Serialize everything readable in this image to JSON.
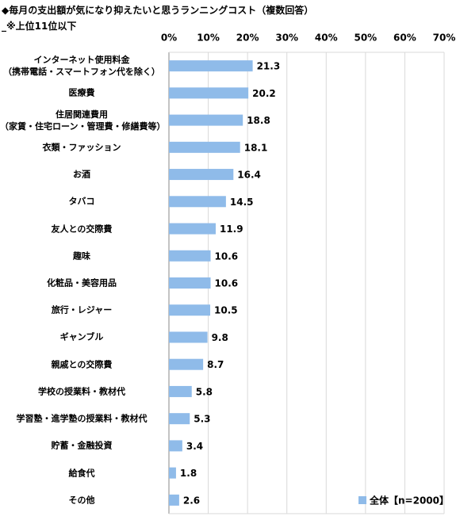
{
  "chart_data": {
    "type": "bar",
    "orientation": "horizontal",
    "title": "◆毎月の支出額が気になり抑えたいと思うランニングコスト（複数回答）",
    "subtitle": "_※上位11位以下",
    "categories": [
      "インターネット使用料金\n（携帯電話・スマートフォン代を除く）",
      "医療費",
      "住居関連費用\n（家賃・住宅ローン・管理費・修繕費等）",
      "衣類・ファッション",
      "お酒",
      "タバコ",
      "友人との交際費",
      "趣味",
      "化粧品・美容用品",
      "旅行・レジャー",
      "ギャンブル",
      "親戚との交際費",
      "学校の授業料・教材代",
      "学習塾・進学塾の授業料・教材代",
      "貯蓄・金融投資",
      "給食代",
      "その他"
    ],
    "series": [
      {
        "name": "全体【n=2000】",
        "color": "#8fbbe9",
        "values": [
          21.3,
          20.2,
          18.8,
          18.1,
          16.4,
          14.5,
          11.9,
          10.6,
          10.6,
          10.5,
          9.8,
          8.7,
          5.8,
          5.3,
          3.4,
          1.8,
          2.6
        ]
      }
    ],
    "xlim": [
      0,
      70
    ],
    "xticks": [
      {
        "value": 0,
        "label": "0%"
      },
      {
        "value": 10,
        "label": "10%"
      },
      {
        "value": 20,
        "label": "20%"
      },
      {
        "value": 30,
        "label": "30%"
      },
      {
        "value": 40,
        "label": "40%"
      },
      {
        "value": 50,
        "label": "50%"
      },
      {
        "value": 60,
        "label": "60%"
      },
      {
        "value": 70,
        "label": "70%"
      }
    ],
    "grid": true,
    "legend": "bottom-right"
  }
}
